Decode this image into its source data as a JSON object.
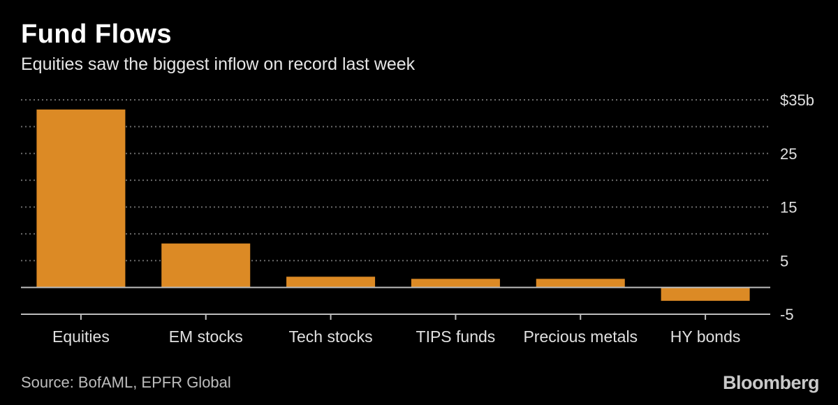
{
  "chart_data": {
    "type": "bar",
    "title": "Fund Flows",
    "subtitle": "Equities saw the biggest inflow on record last week",
    "categories": [
      "Equities",
      "EM stocks",
      "Tech stocks",
      "TIPS funds",
      "Precious metals",
      "HY bonds"
    ],
    "values": [
      33.2,
      8.2,
      2.0,
      1.6,
      1.6,
      -2.5
    ],
    "ylim": [
      -5,
      35
    ],
    "yticks": [
      -5,
      5,
      15,
      25,
      35
    ],
    "ytick_labels": [
      "-5",
      "5",
      "15",
      "25",
      "$35b"
    ],
    "grid": true,
    "xlabel": "",
    "ylabel": "",
    "bar_color": "#dc8a25",
    "grid_color": "#6b6b6b"
  },
  "source": "Source: BofAML, EPFR Global",
  "brand": "Bloomberg"
}
